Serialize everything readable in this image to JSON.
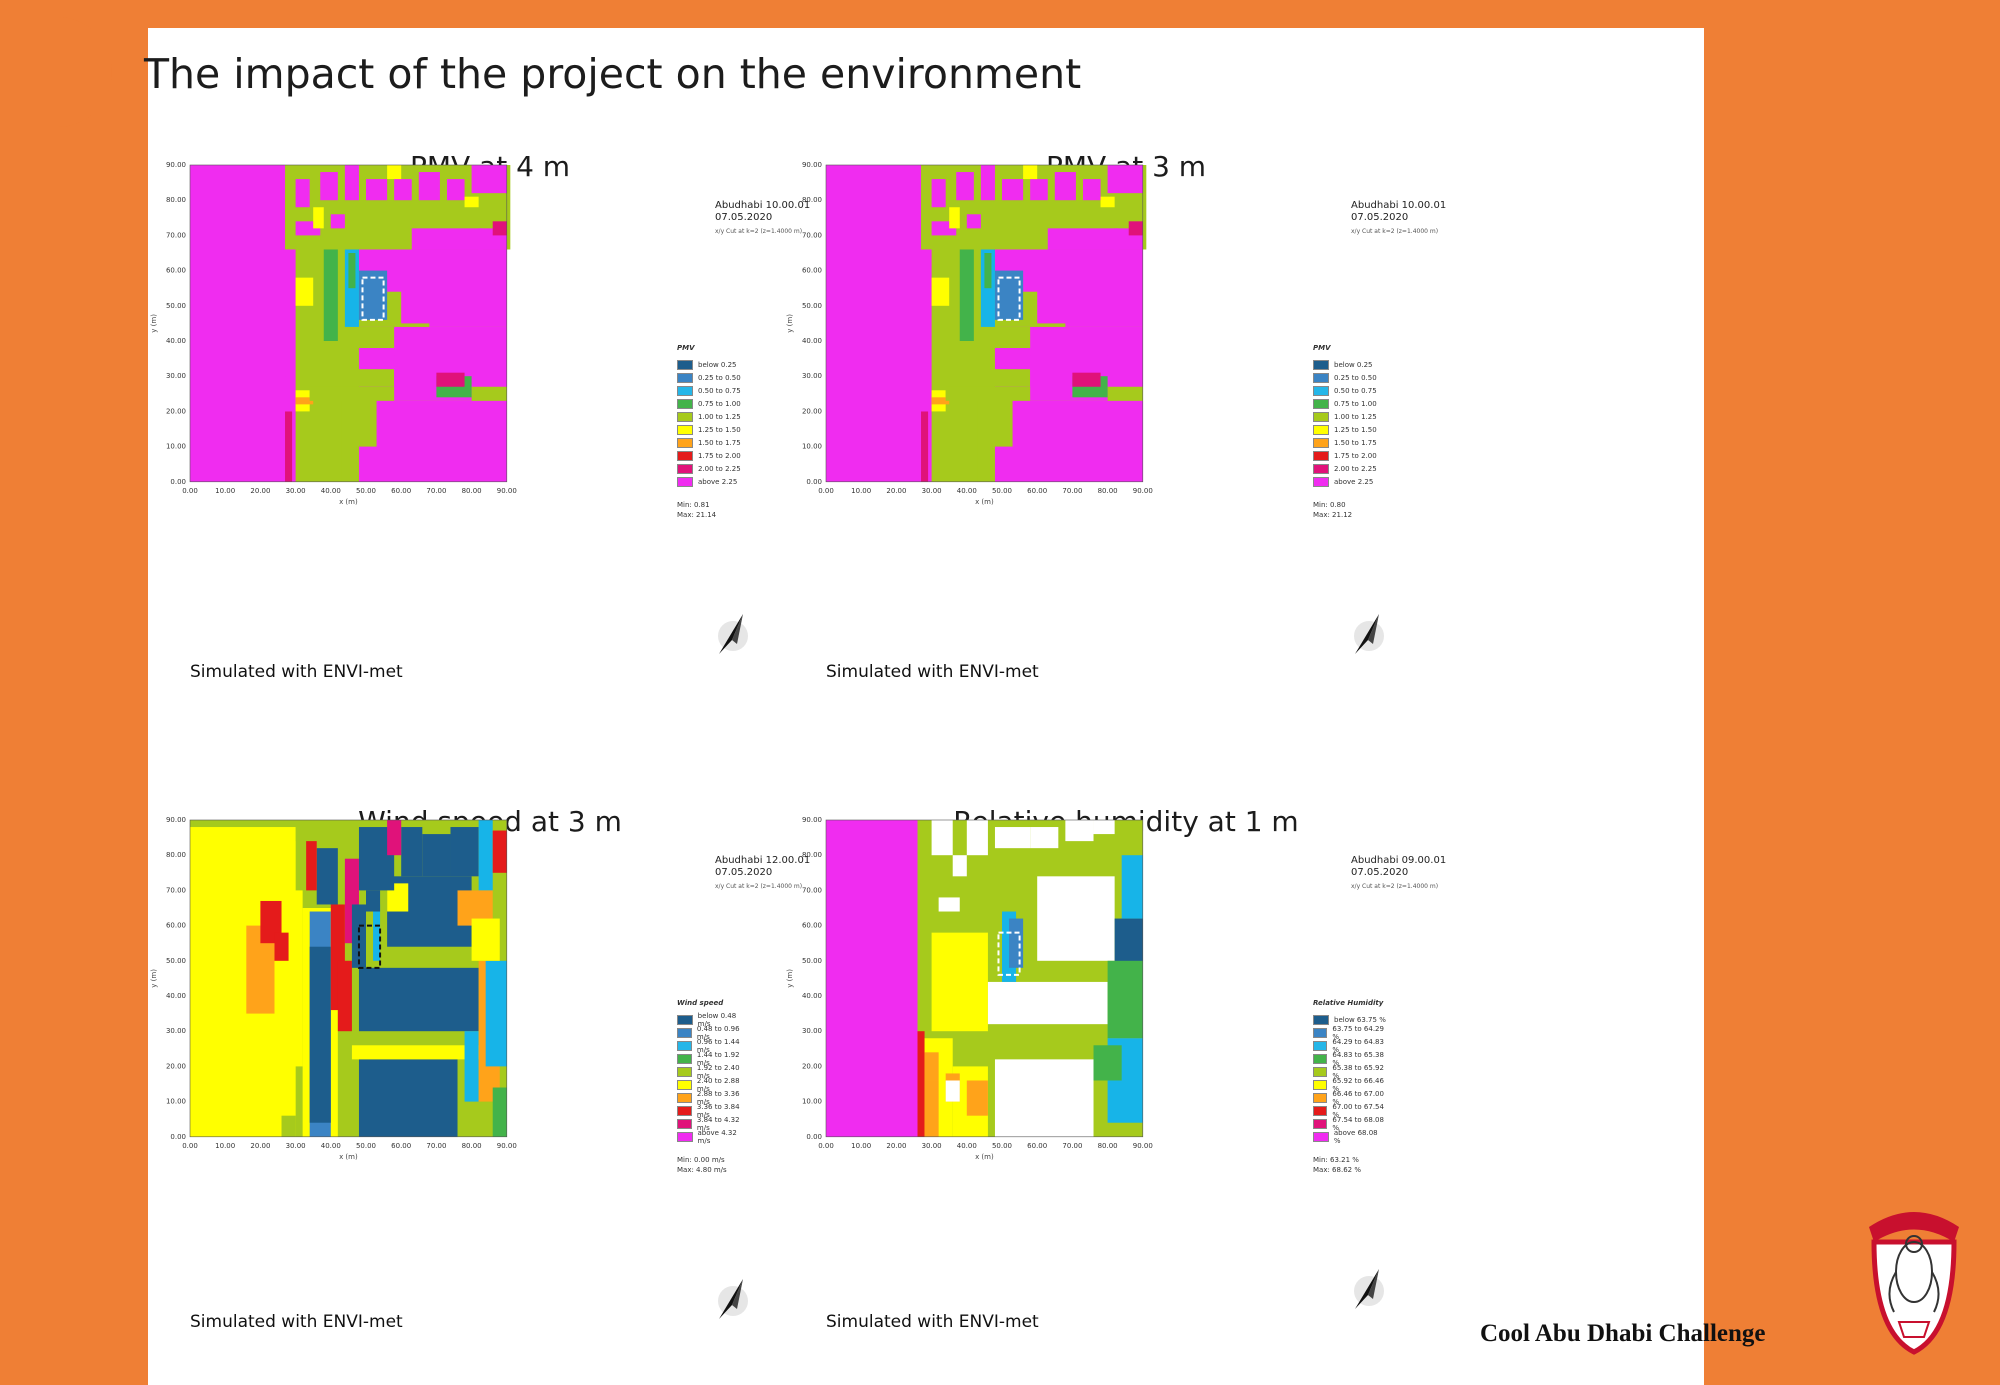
{
  "slide": {
    "title": "The impact of the project on the environment",
    "footer_brand": "Cool Abu Dhabi Challenge"
  },
  "colors": {
    "accent_orange": "#ef7f35",
    "magenta": "#f02cf0",
    "green": "#a6ca1c",
    "yellow": "#ffff00",
    "blue": "#1d6fa8",
    "cyan": "#17b4e8"
  },
  "icons": {
    "north_arrow": "north-arrow-icon",
    "emblem": "falcon-emblem-icon"
  },
  "panels": [
    {
      "title": "PMV at 4 m",
      "run_label": "Abudhabi 10.00.01",
      "date": "07.05.2020",
      "cut_label": "x/y Cut at k=2 (z=1.4000 m)",
      "legend_title": "PMV",
      "legend": [
        {
          "label": "below 0.25",
          "color": "#1d5d8c"
        },
        {
          "label": "0.25 to 0.50",
          "color": "#3b84c4"
        },
        {
          "label": "0.50 to 0.75",
          "color": "#25b6e8"
        },
        {
          "label": "0.75 to 1.00",
          "color": "#43b34a"
        },
        {
          "label": "1.00 to 1.25",
          "color": "#a6ca1c"
        },
        {
          "label": "1.25 to 1.50",
          "color": "#ffff00"
        },
        {
          "label": "1.50 to 1.75",
          "color": "#ffa31a"
        },
        {
          "label": "1.75 to 2.00",
          "color": "#e41b1b"
        },
        {
          "label": "2.00 to 2.25",
          "color": "#e0127a"
        },
        {
          "label": "above 2.25",
          "color": "#f02cf0"
        }
      ],
      "min": "Min: 0.81",
      "max": "Max: 21.14",
      "credit": "Simulated with ENVI-met",
      "y_ticks": [
        "0.00",
        "10.00",
        "20.00",
        "30.00",
        "40.00",
        "50.00",
        "60.00",
        "70.00",
        "80.00",
        "90.00"
      ],
      "x_ticks": [
        "0.00",
        "10.00",
        "20.00",
        "30.00",
        "40.00",
        "50.00",
        "60.00",
        "70.00",
        "80.00",
        "90.00"
      ],
      "x_axis": "x (m)",
      "y_axis": "y (m)"
    },
    {
      "title": "PMV at 3 m",
      "run_label": "Abudhabi 10.00.01",
      "date": "07.05.2020",
      "cut_label": "x/y Cut at k=2 (z=1.4000 m)",
      "legend_title": "PMV",
      "legend": [
        {
          "label": "below 0.25",
          "color": "#1d5d8c"
        },
        {
          "label": "0.25 to 0.50",
          "color": "#3b84c4"
        },
        {
          "label": "0.50 to 0.75",
          "color": "#25b6e8"
        },
        {
          "label": "0.75 to 1.00",
          "color": "#43b34a"
        },
        {
          "label": "1.00 to 1.25",
          "color": "#a6ca1c"
        },
        {
          "label": "1.25 to 1.50",
          "color": "#ffff00"
        },
        {
          "label": "1.50 to 1.75",
          "color": "#ffa31a"
        },
        {
          "label": "1.75 to 2.00",
          "color": "#e41b1b"
        },
        {
          "label": "2.00 to 2.25",
          "color": "#e0127a"
        },
        {
          "label": "above 2.25",
          "color": "#f02cf0"
        }
      ],
      "min": "Min: 0.80",
      "max": "Max: 21.12",
      "credit": "Simulated with ENVI-met",
      "y_ticks": [
        "0.00",
        "10.00",
        "20.00",
        "30.00",
        "40.00",
        "50.00",
        "60.00",
        "70.00",
        "80.00",
        "90.00"
      ],
      "x_ticks": [
        "0.00",
        "10.00",
        "20.00",
        "30.00",
        "40.00",
        "50.00",
        "60.00",
        "70.00",
        "80.00",
        "90.00"
      ],
      "x_axis": "x (m)",
      "y_axis": "y (m)"
    },
    {
      "title": "Wind speed at 3 m",
      "run_label": "Abudhabi 12.00.01",
      "date": "07.05.2020",
      "cut_label": "x/y Cut at k=2 (z=1.4000 m)",
      "legend_title": "Wind speed",
      "legend": [
        {
          "label": "below 0.48 m/s",
          "color": "#1d5d8c"
        },
        {
          "label": "0.48 to 0.96 m/s",
          "color": "#3b84c4"
        },
        {
          "label": "0.96 to 1.44 m/s",
          "color": "#25b6e8"
        },
        {
          "label": "1.44 to 1.92 m/s",
          "color": "#43b34a"
        },
        {
          "label": "1.92 to 2.40 m/s",
          "color": "#a6ca1c"
        },
        {
          "label": "2.40 to 2.88 m/s",
          "color": "#ffff00"
        },
        {
          "label": "2.88 to 3.36 m/s",
          "color": "#ffa31a"
        },
        {
          "label": "3.36 to 3.84 m/s",
          "color": "#e41b1b"
        },
        {
          "label": "3.84 to 4.32 m/s",
          "color": "#e0127a"
        },
        {
          "label": "above 4.32 m/s",
          "color": "#f02cf0"
        }
      ],
      "min": "Min: 0.00 m/s",
      "max": "Max: 4.80 m/s",
      "credit": "Simulated with ENVI-met",
      "y_ticks": [
        "0.00",
        "10.00",
        "20.00",
        "30.00",
        "40.00",
        "50.00",
        "60.00",
        "70.00",
        "80.00",
        "90.00"
      ],
      "x_ticks": [
        "0.00",
        "10.00",
        "20.00",
        "30.00",
        "40.00",
        "50.00",
        "60.00",
        "70.00",
        "80.00",
        "90.00"
      ],
      "x_axis": "x (m)",
      "y_axis": "y (m)"
    },
    {
      "title": "Relative humidity at 1 m",
      "run_label": "Abudhabi 09.00.01",
      "date": "07.05.2020",
      "cut_label": "x/y Cut at k=2 (z=1.4000 m)",
      "legend_title": "Relative Humidity",
      "legend": [
        {
          "label": "below 63.75 %",
          "color": "#1d5d8c"
        },
        {
          "label": "63.75 to 64.29 %",
          "color": "#3b84c4"
        },
        {
          "label": "64.29 to 64.83 %",
          "color": "#25b6e8"
        },
        {
          "label": "64.83 to 65.38 %",
          "color": "#43b34a"
        },
        {
          "label": "65.38 to 65.92 %",
          "color": "#a6ca1c"
        },
        {
          "label": "65.92 to 66.46 %",
          "color": "#ffff00"
        },
        {
          "label": "66.46 to 67.00 %",
          "color": "#ffa31a"
        },
        {
          "label": "67.00 to 67.54 %",
          "color": "#e41b1b"
        },
        {
          "label": "67.54 to 68.08 %",
          "color": "#e0127a"
        },
        {
          "label": "above 68.08 %",
          "color": "#f02cf0"
        }
      ],
      "min": "Min: 63.21 %",
      "max": "Max: 68.62 %",
      "credit": "Simulated with ENVI-met",
      "y_ticks": [
        "0.00",
        "10.00",
        "20.00",
        "30.00",
        "40.00",
        "50.00",
        "60.00",
        "70.00",
        "80.00",
        "90.00"
      ],
      "x_ticks": [
        "0.00",
        "10.00",
        "20.00",
        "30.00",
        "40.00",
        "50.00",
        "60.00",
        "70.00",
        "80.00",
        "90.00"
      ],
      "x_axis": "x (m)",
      "y_axis": "y (m)"
    }
  ]
}
